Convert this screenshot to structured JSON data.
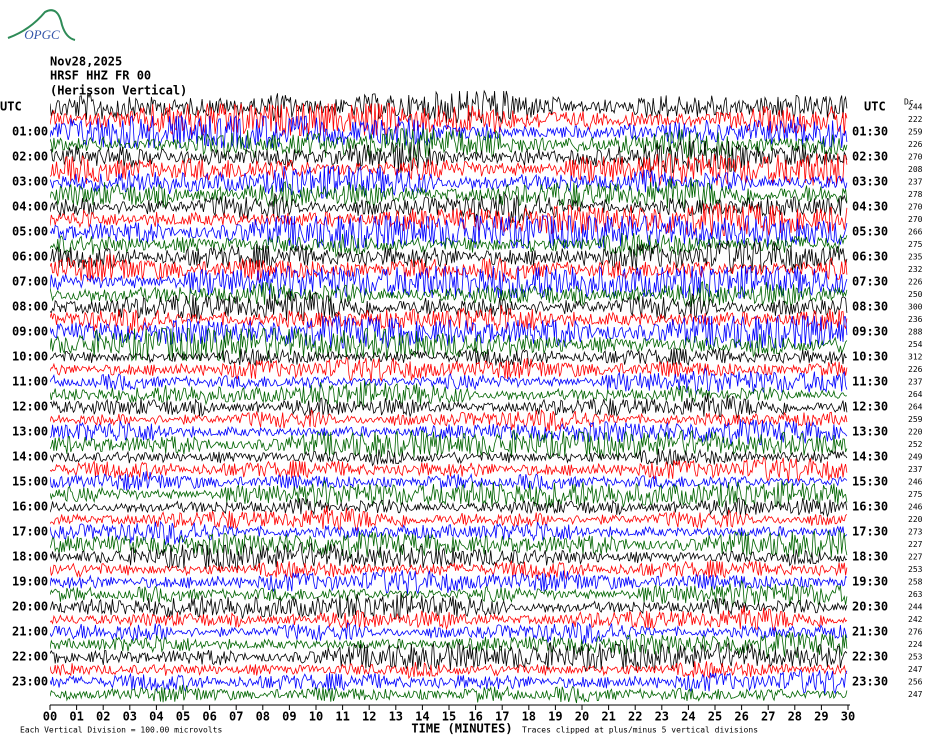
{
  "header": {
    "logo": "OPGC",
    "date": "Nov28,2025",
    "station": "HRSF HHZ FR 00",
    "location": "(Herisson Vertical)"
  },
  "utc_left": "UTC",
  "utc_right": "UTC",
  "dc_label": "Dc",
  "left_times": [
    "01:00",
    "02:00",
    "03:00",
    "04:00",
    "05:00",
    "06:00",
    "07:00",
    "08:00",
    "09:00",
    "10:00",
    "11:00",
    "12:00",
    "13:00",
    "14:00",
    "15:00",
    "16:00",
    "17:00",
    "18:00",
    "19:00",
    "20:00",
    "21:00",
    "22:00",
    "23:00"
  ],
  "right_times": [
    "01:30",
    "02:30",
    "03:30",
    "04:30",
    "05:30",
    "06:30",
    "07:30",
    "08:30",
    "09:30",
    "10:30",
    "11:30",
    "12:30",
    "13:30",
    "14:30",
    "15:30",
    "16:30",
    "17:30",
    "18:30",
    "19:30",
    "20:30",
    "21:30",
    "22:30",
    "23:30"
  ],
  "dc_values": [
    "244",
    "222",
    "259",
    "226",
    "270",
    "208",
    "237",
    "278",
    "270",
    "270",
    "266",
    "275",
    "235",
    "232",
    "226",
    "250",
    "300",
    "236",
    "288",
    "254",
    "312",
    "226",
    "237",
    "264",
    "264",
    "259",
    "220",
    "252",
    "249",
    "237",
    "246",
    "275",
    "246",
    "220",
    "273",
    "227",
    "227",
    "253",
    "258",
    "263",
    "244",
    "242",
    "276",
    "224",
    "253",
    "247",
    "256",
    "247"
  ],
  "x_ticks": [
    "00",
    "01",
    "02",
    "03",
    "04",
    "05",
    "06",
    "07",
    "08",
    "09",
    "10",
    "11",
    "12",
    "13",
    "14",
    "15",
    "16",
    "17",
    "18",
    "19",
    "20",
    "21",
    "22",
    "23",
    "24",
    "25",
    "26",
    "27",
    "28",
    "29",
    "30"
  ],
  "x_label": "TIME (MINUTES)",
  "scale_note": "Each Vertical Division =  100.00 microvolts",
  "clip_note": "Traces clipped at plus/minus 5 vertical divisions",
  "trace_colors": [
    "#000000",
    "#ff0000",
    "#0000ff",
    "#006400"
  ]
}
